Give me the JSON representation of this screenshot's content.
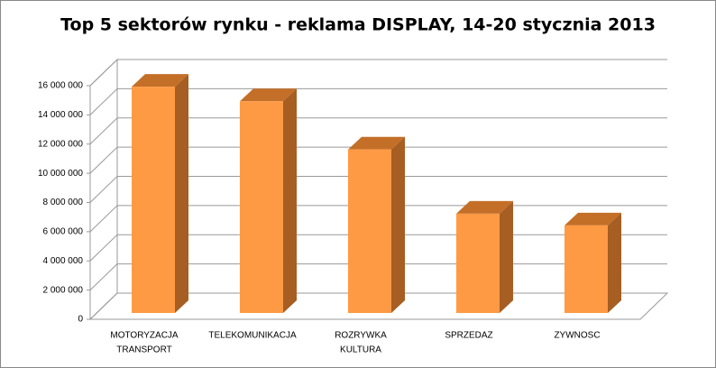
{
  "chart_data": {
    "type": "bar3d",
    "title": "Top 5 sektorów rynku - reklama DISPLAY, 14-20 stycznia 2013",
    "categories": [
      [
        "MOTORYZACJA",
        "TRANSPORT"
      ],
      [
        "TELEKOMUNIKACJA"
      ],
      [
        "ROZRYWKA",
        "KULTURA"
      ],
      [
        "SPRZEDAZ"
      ],
      [
        "ZYWNOSC"
      ]
    ],
    "values": [
      15500000,
      14500000,
      11200000,
      6800000,
      6000000
    ],
    "color": "#ff9a44",
    "ylim": [
      0,
      16000000
    ],
    "yticks": [
      0,
      {
        "value": 2000000,
        "label": "2 000 000"
      },
      {
        "value": 4000000,
        "label": "4 000 000"
      },
      {
        "value": 6000000,
        "label": "6 000 000"
      },
      {
        "value": 8000000,
        "label": "8 000 000"
      },
      {
        "value": 10000000,
        "label": "10 000 000"
      },
      {
        "value": 12000000,
        "label": "12 000 000"
      },
      {
        "value": 14000000,
        "label": "14 000 000"
      },
      {
        "value": 16000000,
        "label": "16 000 000"
      }
    ],
    "grid": true
  }
}
